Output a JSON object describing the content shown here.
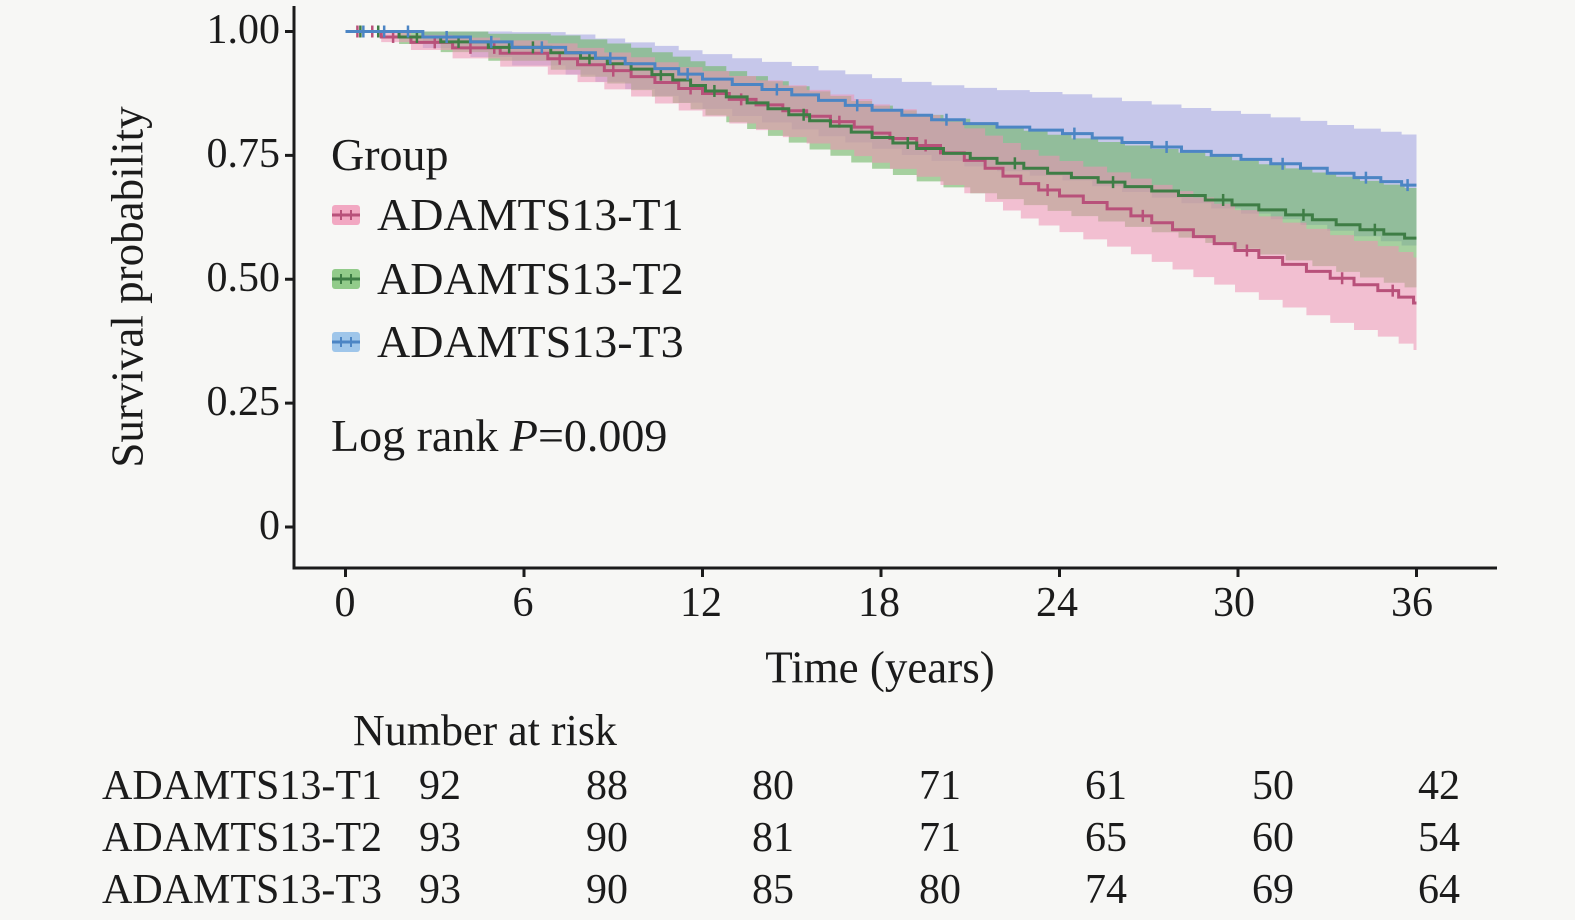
{
  "figure": {
    "background": "#f7f7f5",
    "text_color": "#1b1b1b",
    "axis_color": "#1b1b1b"
  },
  "stats": {
    "prefix": "Log rank ",
    "symbol": "P",
    "value": "=0.009"
  },
  "risk_table": {
    "title": "Number at risk",
    "rows": [
      {
        "label": "ADAMTS13-T1",
        "values": [
          "92",
          "88",
          "80",
          "71",
          "61",
          "50",
          "42"
        ]
      },
      {
        "label": "ADAMTS13-T2",
        "values": [
          "93",
          "90",
          "81",
          "71",
          "65",
          "60",
          "54"
        ]
      },
      {
        "label": "ADAMTS13-T3",
        "values": [
          "93",
          "90",
          "85",
          "80",
          "74",
          "69",
          "64"
        ]
      }
    ]
  },
  "chart_data": {
    "type": "line",
    "subtype": "kaplan-meier-step",
    "title": "",
    "xlabel": "Time (years)",
    "ylabel": "Survival probability",
    "xlim": [
      0,
      36
    ],
    "ylim": [
      0,
      1
    ],
    "x_tick_values": [
      0,
      6,
      12,
      18,
      24,
      30,
      36
    ],
    "x_tick_labels": [
      "0",
      "6",
      "12",
      "18",
      "24",
      "30",
      "36"
    ],
    "y_tick_values": [
      1.0,
      0.75,
      0.5,
      0.25,
      0
    ],
    "y_tick_labels": [
      "1.00",
      "0.75",
      "0.50",
      "0.25",
      "0"
    ],
    "grid": false,
    "legend_title": "Group",
    "legend_position": "inside-left",
    "ci_exponent": 0.65,
    "series": [
      {
        "name": "T1",
        "label": "ADAMTS13-T1",
        "line": "#b8517a",
        "band": "rgba(238,145,178,0.55)",
        "swatch_fill": "#f2a8c2",
        "ci_lo": 0.095,
        "ci_hi": 0.092,
        "steps": [
          [
            1.2,
            0.989
          ],
          [
            2.2,
            0.978
          ],
          [
            3.6,
            0.967
          ],
          [
            5.2,
            0.956
          ],
          [
            6.8,
            0.945
          ],
          [
            7.8,
            0.933
          ],
          [
            8.7,
            0.921
          ],
          [
            9.6,
            0.909
          ],
          [
            10.4,
            0.897
          ],
          [
            11.2,
            0.885
          ],
          [
            12.0,
            0.875
          ],
          [
            12.9,
            0.863
          ],
          [
            13.8,
            0.852
          ],
          [
            14.7,
            0.84
          ],
          [
            15.5,
            0.829
          ],
          [
            16.3,
            0.818
          ],
          [
            17.1,
            0.807
          ],
          [
            17.7,
            0.795
          ],
          [
            18.3,
            0.784
          ],
          [
            19.2,
            0.77
          ],
          [
            20.0,
            0.755
          ],
          [
            20.8,
            0.74
          ],
          [
            21.5,
            0.724
          ],
          [
            22.1,
            0.708
          ],
          [
            22.7,
            0.693
          ],
          [
            23.3,
            0.68
          ],
          [
            24.0,
            0.668
          ],
          [
            24.8,
            0.655
          ],
          [
            25.6,
            0.642
          ],
          [
            26.4,
            0.628
          ],
          [
            27.1,
            0.614
          ],
          [
            27.8,
            0.6
          ],
          [
            28.5,
            0.586
          ],
          [
            29.2,
            0.572
          ],
          [
            29.9,
            0.558
          ],
          [
            30.7,
            0.544
          ],
          [
            31.5,
            0.53
          ],
          [
            32.3,
            0.516
          ],
          [
            33.1,
            0.502
          ],
          [
            33.9,
            0.489
          ],
          [
            34.7,
            0.477
          ],
          [
            35.4,
            0.464
          ],
          [
            35.9,
            0.452
          ]
        ],
        "censor_times": [
          0.4,
          0.9,
          1.6,
          3.0,
          4.2,
          5.0,
          7.2,
          9.0,
          11.6,
          13.3,
          16.6,
          19.5,
          23.6,
          26.8,
          30.3,
          33.5,
          35.2
        ]
      },
      {
        "name": "T2",
        "label": "ADAMTS13-T2",
        "line": "#3e7d45",
        "band": "rgba(112,181,101,0.6)",
        "swatch_fill": "#92cb8a",
        "ci_lo": 0.1,
        "ci_hi": 0.102,
        "steps": [
          [
            1.8,
            0.989
          ],
          [
            3.2,
            0.979
          ],
          [
            4.8,
            0.968
          ],
          [
            6.9,
            0.957
          ],
          [
            7.9,
            0.946
          ],
          [
            8.8,
            0.935
          ],
          [
            9.6,
            0.924
          ],
          [
            10.3,
            0.913
          ],
          [
            11.0,
            0.902
          ],
          [
            11.6,
            0.891
          ],
          [
            12.1,
            0.88
          ],
          [
            12.8,
            0.868
          ],
          [
            13.5,
            0.856
          ],
          [
            14.2,
            0.844
          ],
          [
            14.9,
            0.832
          ],
          [
            15.6,
            0.82
          ],
          [
            16.3,
            0.809
          ],
          [
            17.0,
            0.797
          ],
          [
            17.7,
            0.786
          ],
          [
            18.4,
            0.775
          ],
          [
            19.2,
            0.764
          ],
          [
            20.1,
            0.754
          ],
          [
            21.0,
            0.744
          ],
          [
            21.9,
            0.734
          ],
          [
            22.8,
            0.724
          ],
          [
            23.6,
            0.714
          ],
          [
            24.4,
            0.705
          ],
          [
            25.3,
            0.696
          ],
          [
            26.2,
            0.687
          ],
          [
            27.1,
            0.678
          ],
          [
            28.0,
            0.669
          ],
          [
            28.9,
            0.66
          ],
          [
            29.8,
            0.65
          ],
          [
            30.7,
            0.64
          ],
          [
            31.6,
            0.63
          ],
          [
            32.5,
            0.62
          ],
          [
            33.3,
            0.61
          ],
          [
            34.1,
            0.6
          ],
          [
            34.9,
            0.591
          ],
          [
            35.6,
            0.583
          ]
        ],
        "censor_times": [
          0.5,
          1.1,
          2.4,
          3.8,
          5.5,
          6.3,
          8.2,
          10.6,
          12.4,
          15.4,
          18.9,
          22.5,
          25.8,
          29.5,
          32.2,
          34.6
        ]
      },
      {
        "name": "T3",
        "label": "ADAMTS13-T3",
        "line": "#4c85c4",
        "band": "rgba(150,152,224,0.5)",
        "swatch_fill": "#9fc6ea",
        "ci_lo": 0.123,
        "ci_hi": 0.103,
        "steps": [
          [
            2.6,
            0.989
          ],
          [
            4.2,
            0.979
          ],
          [
            5.6,
            0.968
          ],
          [
            7.4,
            0.957
          ],
          [
            8.4,
            0.946
          ],
          [
            9.4,
            0.935
          ],
          [
            10.4,
            0.925
          ],
          [
            11.2,
            0.914
          ],
          [
            12.0,
            0.904
          ],
          [
            13.0,
            0.893
          ],
          [
            14.0,
            0.883
          ],
          [
            15.0,
            0.872
          ],
          [
            15.9,
            0.861
          ],
          [
            16.8,
            0.851
          ],
          [
            17.7,
            0.841
          ],
          [
            18.7,
            0.831
          ],
          [
            19.7,
            0.822
          ],
          [
            20.8,
            0.814
          ],
          [
            21.9,
            0.807
          ],
          [
            23.0,
            0.801
          ],
          [
            24.1,
            0.794
          ],
          [
            25.1,
            0.785
          ],
          [
            26.1,
            0.776
          ],
          [
            27.1,
            0.767
          ],
          [
            28.1,
            0.758
          ],
          [
            29.1,
            0.75
          ],
          [
            30.1,
            0.742
          ],
          [
            31.1,
            0.733
          ],
          [
            32.1,
            0.724
          ],
          [
            33.0,
            0.714
          ],
          [
            33.9,
            0.705
          ],
          [
            34.8,
            0.697
          ],
          [
            35.5,
            0.69
          ]
        ],
        "censor_times": [
          0.6,
          1.3,
          2.1,
          3.4,
          4.9,
          6.6,
          8.9,
          11.5,
          14.5,
          17.2,
          20.2,
          24.5,
          27.6,
          31.5,
          34.3,
          35.7
        ]
      }
    ]
  }
}
